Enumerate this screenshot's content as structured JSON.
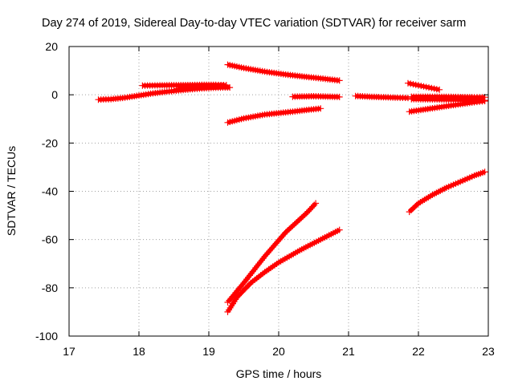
{
  "chart_data": {
    "type": "scatter",
    "title": "Day 274 of 2019, Sidereal Day-to-day VTEC variation (SDTVAR) for receiver sarm",
    "xlabel": "GPS time / hours",
    "ylabel": "SDTVAR / TECUs",
    "xlim": [
      17,
      23
    ],
    "ylim": [
      -100,
      20
    ],
    "xticks": [
      "17",
      "18",
      "19",
      "20",
      "21",
      "22",
      "23"
    ],
    "yticks": [
      "20",
      "0",
      "-20",
      "-40",
      "-60",
      "-80",
      "-100"
    ],
    "grid": true,
    "series_color": "#ff0000",
    "series": [
      {
        "x": [
          17.42,
          17.6,
          17.8,
          18.0,
          18.2,
          18.4,
          18.6,
          18.8,
          19.0,
          19.2,
          19.3
        ],
        "y": [
          -2,
          -1.8,
          -1.2,
          -0.3,
          0.6,
          1.3,
          1.9,
          2.4,
          2.8,
          3.0,
          3.0
        ]
      },
      {
        "x": [
          18.05,
          18.3,
          18.6,
          18.9,
          19.1,
          19.25
        ],
        "y": [
          3.8,
          3.9,
          4.0,
          4.1,
          4.1,
          4.0
        ]
      },
      {
        "x": [
          18.55,
          18.8,
          19.0,
          19.2
        ],
        "y": [
          2.5,
          3.0,
          3.5,
          3.8
        ]
      },
      {
        "x": [
          19.27,
          19.5,
          19.8,
          20.1,
          20.4,
          20.6,
          20.87
        ],
        "y": [
          12.5,
          11.1,
          9.6,
          8.4,
          7.4,
          6.8,
          5.9
        ]
      },
      {
        "x": [
          19.27,
          19.5,
          19.8,
          20.0,
          20.2,
          20.4,
          20.6
        ],
        "y": [
          -11.5,
          -9.8,
          -8.2,
          -7.6,
          -7.0,
          -6.3,
          -5.7
        ]
      },
      {
        "x": [
          20.2,
          20.5,
          20.87
        ],
        "y": [
          -0.8,
          -0.6,
          -0.9
        ]
      },
      {
        "x": [
          21.1,
          21.3,
          21.5,
          21.7,
          21.85
        ],
        "y": [
          -0.5,
          -0.8,
          -1.0,
          -1.2,
          -1.3
        ]
      },
      {
        "x": [
          21.85,
          22.0,
          22.15,
          22.3
        ],
        "y": [
          4.8,
          3.9,
          3.0,
          2.1
        ]
      },
      {
        "x": [
          21.9,
          22.2,
          22.5,
          22.8,
          22.95
        ],
        "y": [
          -0.8,
          -0.8,
          -0.9,
          -1.0,
          -1.0
        ]
      },
      {
        "x": [
          21.9,
          22.2,
          22.5,
          22.8,
          22.95
        ],
        "y": [
          -1.8,
          -1.9,
          -2.0,
          -2.2,
          -2.3
        ]
      },
      {
        "x": [
          21.87,
          22.2,
          22.5,
          22.8,
          22.95
        ],
        "y": [
          -7.0,
          -5.6,
          -4.3,
          -3.1,
          -2.6
        ]
      },
      {
        "x": [
          19.27,
          19.5,
          19.8,
          20.1,
          20.4,
          20.53
        ],
        "y": [
          -86,
          -78,
          -67,
          -57,
          -49,
          -45
        ]
      },
      {
        "x": [
          19.27,
          19.4,
          19.6,
          19.8,
          20.0,
          20.3,
          20.6,
          20.87
        ],
        "y": [
          -90,
          -84,
          -78,
          -73.5,
          -69.5,
          -64.5,
          -60,
          -56
        ]
      },
      {
        "x": [
          21.87,
          22.0,
          22.2,
          22.4,
          22.6,
          22.8,
          22.95
        ],
        "y": [
          -48.5,
          -45,
          -41.5,
          -38.5,
          -36,
          -33.5,
          -32
        ]
      }
    ]
  }
}
